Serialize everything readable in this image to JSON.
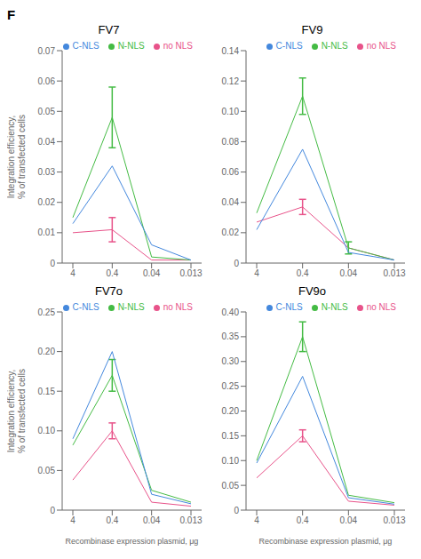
{
  "chart_data": [
    {
      "type": "line",
      "title": "FV7",
      "annotations": [
        "F"
      ],
      "y_label": "Integration efficiency,\n% of transfected cells",
      "categories": [
        "4",
        "0.4",
        "0.04",
        "0.013"
      ],
      "ylim": [
        0,
        0.07
      ],
      "yticks": [
        0,
        0.01,
        0.02,
        0.03,
        0.04,
        0.05,
        0.06,
        0.07
      ],
      "series": [
        {
          "name": "no NLS",
          "color": "#e8538a",
          "values": [
            0.01,
            0.011,
            0.001,
            0.001
          ],
          "errors": [
            0.0,
            0.004,
            0.0,
            0.0
          ]
        },
        {
          "name": "N-NLS",
          "color": "#44bb44",
          "values": [
            0.015,
            0.048,
            0.002,
            0.001
          ],
          "errors": [
            0.0,
            0.01,
            0.0,
            0.0
          ]
        },
        {
          "name": "C-NLS",
          "color": "#4488dd",
          "values": [
            0.013,
            0.032,
            0.006,
            0.001
          ],
          "errors": [
            0.0,
            0.0,
            0.0,
            0.0
          ]
        }
      ],
      "legend": "upper right",
      "grid": false
    },
    {
      "type": "line",
      "title": "FV9",
      "categories": [
        "4",
        "0.4",
        "0.04",
        "0.013"
      ],
      "ylim": [
        0,
        0.14
      ],
      "yticks": [
        0,
        0.02,
        0.04,
        0.06,
        0.08,
        {
          "value": 0.1,
          "label": "0.10"
        },
        0.12,
        0.14
      ],
      "series": [
        {
          "name": "no NLS",
          "color": "#e8538a",
          "values": [
            0.027,
            0.037,
            0.01,
            0.002
          ],
          "errors": [
            0.0,
            0.005,
            0.0,
            0.0
          ]
        },
        {
          "name": "N-NLS",
          "color": "#44bb44",
          "values": [
            0.033,
            0.11,
            0.01,
            0.002
          ],
          "errors": [
            0.0,
            0.012,
            0.004,
            0.0
          ]
        },
        {
          "name": "C-NLS",
          "color": "#4488dd",
          "values": [
            0.022,
            0.075,
            0.007,
            0.002
          ],
          "errors": [
            0.0,
            0.0,
            0.0,
            0.0
          ]
        }
      ],
      "legend": "upper right",
      "grid": false
    },
    {
      "type": "line",
      "title": "FV7o",
      "y_label": "Integration efficiency,\n% of transfected cells",
      "x_label": "Recombinase expression plasmid, μg",
      "categories": [
        "4",
        "0.4",
        "0.04",
        "0.013"
      ],
      "ylim": [
        0,
        0.25
      ],
      "yticks": [
        0,
        0.05,
        {
          "value": 0.1,
          "label": "0.10"
        },
        0.15,
        {
          "value": 0.2,
          "label": "0.20"
        },
        0.25
      ],
      "series": [
        {
          "name": "no NLS",
          "color": "#e8538a",
          "values": [
            0.038,
            0.1,
            0.01,
            0.005
          ],
          "errors": [
            0.0,
            0.01,
            0.0,
            0.0
          ]
        },
        {
          "name": "N-NLS",
          "color": "#44bb44",
          "values": [
            0.082,
            0.17,
            0.025,
            0.01
          ],
          "errors": [
            0.0,
            0.02,
            0.0,
            0.0
          ]
        },
        {
          "name": "C-NLS",
          "color": "#4488dd",
          "values": [
            0.09,
            0.2,
            0.02,
            0.008
          ],
          "errors": [
            0.0,
            0.0,
            0.0,
            0.0
          ]
        }
      ],
      "legend": "upper right",
      "grid": false
    },
    {
      "type": "line",
      "title": "FV9o",
      "x_label": "Recombinase expression plasmid, μg",
      "categories": [
        "4",
        "0.4",
        "0.04",
        "0.013"
      ],
      "ylim": [
        0,
        0.4
      ],
      "yticks": [
        0,
        0.05,
        {
          "value": 0.1,
          "label": "0.10"
        },
        0.15,
        {
          "value": 0.2,
          "label": "0.20"
        },
        0.25,
        {
          "value": 0.3,
          "label": "0.30"
        },
        0.35,
        {
          "value": 0.4,
          "label": "0.40"
        }
      ],
      "series": [
        {
          "name": "no NLS",
          "color": "#e8538a",
          "values": [
            0.065,
            0.15,
            0.018,
            0.01
          ],
          "errors": [
            0.0,
            0.012,
            0.0,
            0.0
          ]
        },
        {
          "name": "N-NLS",
          "color": "#44bb44",
          "values": [
            0.1,
            0.35,
            0.03,
            0.015
          ],
          "errors": [
            0.0,
            0.03,
            0.0,
            0.0
          ]
        },
        {
          "name": "C-NLS",
          "color": "#4488dd",
          "values": [
            0.095,
            0.27,
            0.025,
            0.012
          ],
          "errors": [
            0.0,
            0.0,
            0.0,
            0.0
          ]
        }
      ],
      "legend": "upper right",
      "grid": false
    }
  ]
}
